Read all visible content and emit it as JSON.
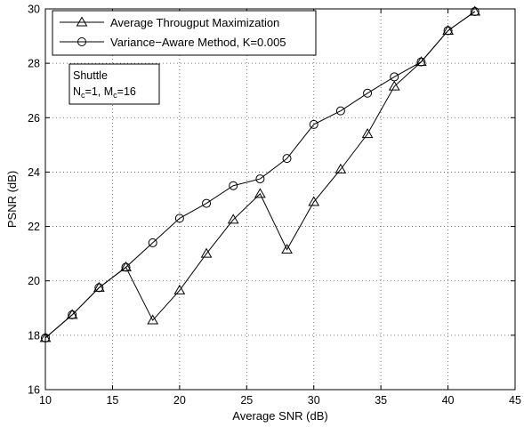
{
  "chart_data": {
    "type": "line",
    "title": "",
    "xlabel": "Average SNR (dB)",
    "ylabel": "PSNR (dB)",
    "xlim": [
      10,
      45
    ],
    "ylim": [
      16,
      30
    ],
    "xticks": [
      10,
      15,
      20,
      25,
      30,
      35,
      40,
      45
    ],
    "yticks": [
      16,
      18,
      20,
      22,
      24,
      26,
      28,
      30
    ],
    "grid": true,
    "legend_position": "top-left",
    "annotation": {
      "line1": "Shuttle",
      "line2_parts": [
        "N",
        "c",
        "=1, M",
        "c",
        "=16"
      ]
    },
    "series": [
      {
        "name": "Average Througput Maximization",
        "marker": "triangle",
        "x": [
          10,
          12,
          14,
          16,
          18,
          20,
          22,
          24,
          26,
          28,
          30,
          32,
          34,
          36,
          38,
          40,
          42
        ],
        "y": [
          17.9,
          18.75,
          19.75,
          20.5,
          18.55,
          19.65,
          21.0,
          22.25,
          23.2,
          21.15,
          22.9,
          24.1,
          25.4,
          27.15,
          28.05,
          29.2,
          29.9
        ]
      },
      {
        "name": "Variance−Aware Method, K=0.005",
        "marker": "circle",
        "x": [
          10,
          12,
          14,
          16,
          18,
          20,
          22,
          24,
          26,
          28,
          30,
          32,
          34,
          36,
          38,
          40,
          42
        ],
        "y": [
          17.9,
          18.75,
          19.75,
          20.5,
          21.4,
          22.3,
          22.85,
          23.5,
          23.75,
          24.5,
          25.75,
          26.25,
          26.9,
          27.5,
          28.05,
          29.2,
          29.9
        ]
      }
    ]
  }
}
